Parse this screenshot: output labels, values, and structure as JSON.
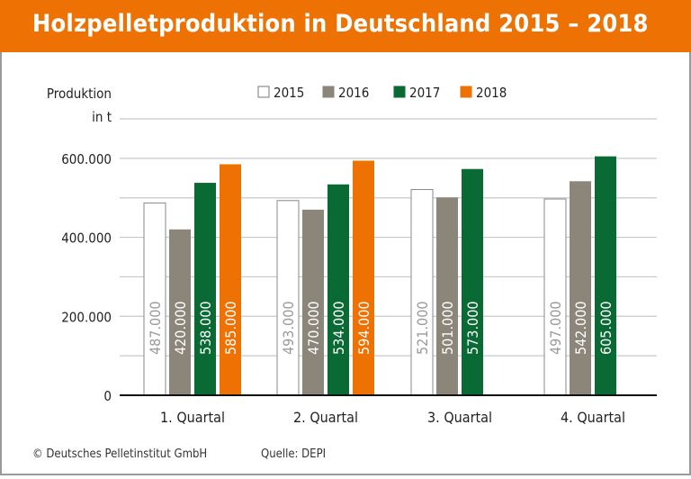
{
  "header": {
    "title": "Holzpelletproduktion in Deutschland 2015 – 2018"
  },
  "footer": {
    "copyright": "© Deutsches Pelletinstitut GmbH",
    "source": "Quelle: DEPI"
  },
  "chart_data": {
    "type": "bar",
    "title": "Holzpelletproduktion in Deutschland 2015 – 2018",
    "ylabel_line1": "Produktion",
    "ylabel_line2": "in t",
    "ylim": [
      0,
      700000
    ],
    "yticks": [
      0,
      200000,
      400000,
      600000
    ],
    "ytick_labels": [
      "0",
      "200.000",
      "400.000",
      "600.000"
    ],
    "grid": true,
    "legend_position": "top",
    "categories": [
      "1. Quartal",
      "2. Quartal",
      "3. Quartal",
      "4. Quartal"
    ],
    "series": [
      {
        "name": "2015",
        "color": "#ffffff",
        "values": [
          487000,
          493000,
          521000,
          497000
        ],
        "labels": [
          "487.000",
          "493.000",
          "521.000",
          "497.000"
        ]
      },
      {
        "name": "2016",
        "color": "#8b857a",
        "values": [
          420000,
          470000,
          501000,
          542000
        ],
        "labels": [
          "420.000",
          "470.000",
          "501.000",
          "542.000"
        ]
      },
      {
        "name": "2017",
        "color": "#0a6a34",
        "values": [
          538000,
          534000,
          573000,
          605000
        ],
        "labels": [
          "538.000",
          "534.000",
          "573.000",
          "605.000"
        ]
      },
      {
        "name": "2018",
        "color": "#ee7203",
        "values": [
          585000,
          594000,
          null,
          null
        ],
        "labels": [
          "585.000",
          "594.000",
          null,
          null
        ]
      }
    ]
  }
}
